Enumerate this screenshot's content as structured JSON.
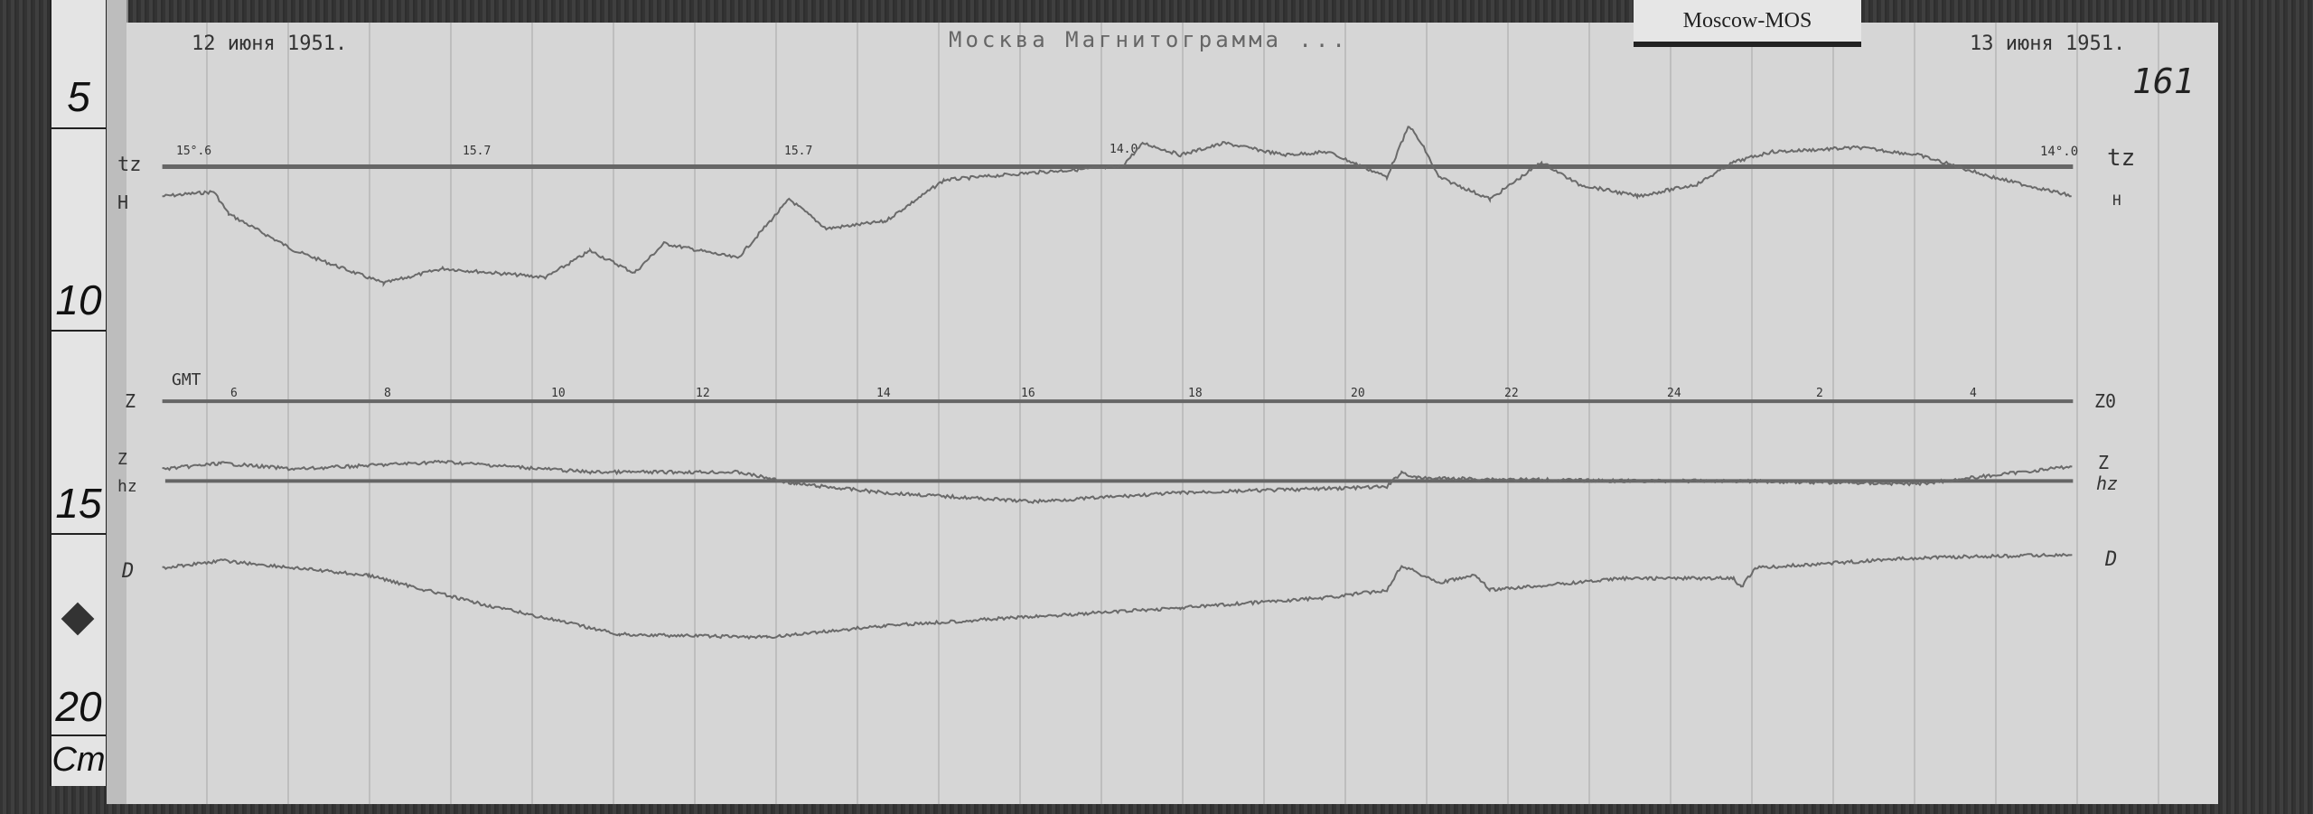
{
  "ruler": {
    "marks": [
      "5",
      "10",
      "15",
      "20"
    ],
    "unit": "Cm"
  },
  "label_card": "Moscow-MOS",
  "header": {
    "start_date": "12 июня 1951.",
    "title": "Москва Магнитограмма ...",
    "end_date": "13 июня 1951.",
    "sheet_number": "161"
  },
  "left_labels": {
    "tz": "tz",
    "h": "H",
    "z0": "Z",
    "z": "Z",
    "hz": "hz",
    "d": "D",
    "gmt": "GMT"
  },
  "right_labels": {
    "tz": "tz",
    "h": "H",
    "z0": "Z0",
    "z": "Z",
    "hz": "hz",
    "d": "D"
  },
  "top_time_marks": [
    "15°.6",
    "15.7",
    "15.7",
    "14.0",
    "14°.0"
  ],
  "hour_marks": [
    "6",
    "8",
    "10",
    "12",
    "14",
    "16",
    "18",
    "20",
    "22",
    "24",
    "2",
    "4"
  ],
  "colors": {
    "paper": "#d6d6d6",
    "ink": "#555555",
    "background": "#3a3a3a"
  }
}
